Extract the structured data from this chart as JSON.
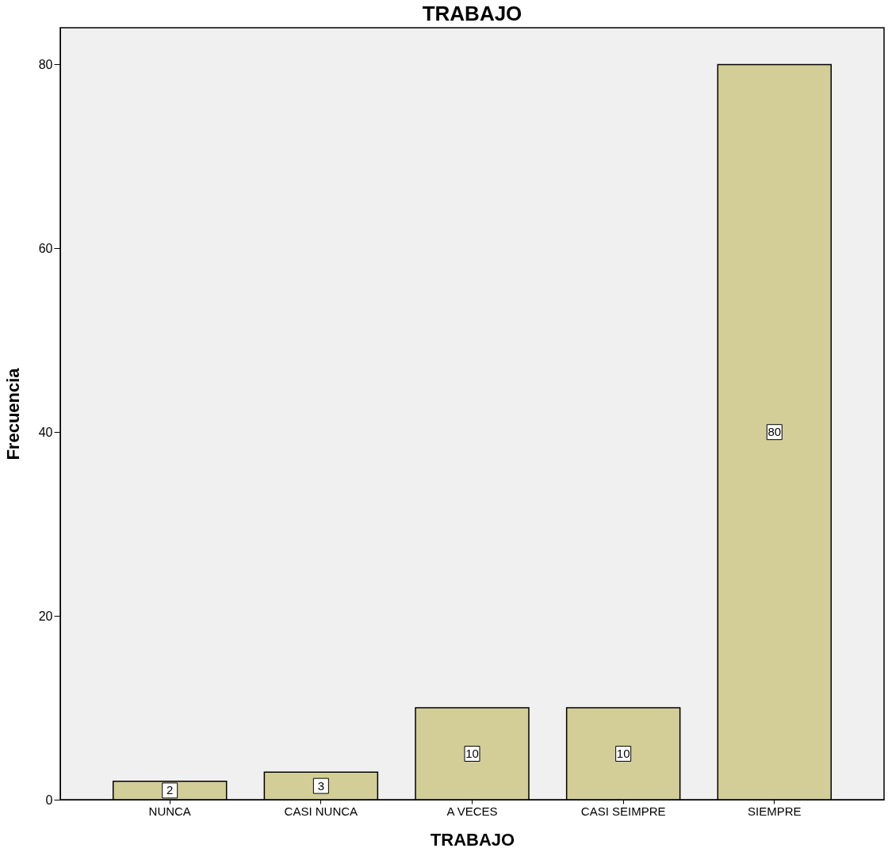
{
  "chart_data": {
    "type": "bar",
    "title": "TRABAJO",
    "xlabel": "TRABAJO",
    "ylabel": "Frecuencia",
    "categories": [
      "NUNCA",
      "CASI NUNCA",
      "A VECES",
      "CASI SEIMPRE",
      "SIEMPRE"
    ],
    "values": [
      2,
      3,
      10,
      10,
      80
    ],
    "color": "#d3ce97",
    "ylim": [
      0,
      84
    ],
    "yticks": [
      0,
      20,
      40,
      60,
      80
    ],
    "grid": false,
    "data_labels": true
  }
}
